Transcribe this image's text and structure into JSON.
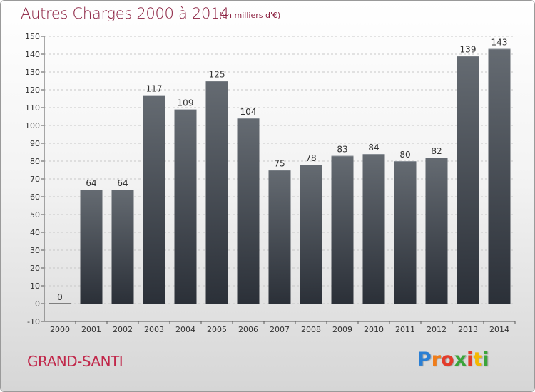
{
  "header": {
    "title": "Autres Charges 2000 à 2014",
    "subtitle": "(en milliers d'€)"
  },
  "footer": {
    "commune": "GRAND-SANTI",
    "logo_letters": [
      "P",
      "r",
      "o",
      "x",
      "i",
      "t",
      "i"
    ],
    "logo_colors": [
      "#2a7fd4",
      "#f07d1a",
      "#e43c2b",
      "#3aa53a",
      "#e43c2b",
      "#f5b800",
      "#3aa53a"
    ]
  },
  "colors": {
    "bar_top": "#656b72",
    "bar_bottom": "#2b3038",
    "grid": "#c8c8c8",
    "title": "#8a1e3e",
    "commune": "#c1274a"
  },
  "chart_data": {
    "type": "bar",
    "title": "Autres Charges 2000 à 2014",
    "subtitle": "(en milliers d'€)",
    "categories": [
      "2000",
      "2001",
      "2002",
      "2003",
      "2004",
      "2005",
      "2006",
      "2007",
      "2008",
      "2009",
      "2010",
      "2011",
      "2012",
      "2013",
      "2014"
    ],
    "values": [
      0,
      64,
      64,
      117,
      109,
      125,
      104,
      75,
      78,
      83,
      84,
      80,
      82,
      139,
      143
    ],
    "ylim": [
      -10,
      150
    ],
    "yticks": [
      -10,
      0,
      10,
      20,
      30,
      40,
      50,
      60,
      70,
      80,
      90,
      100,
      110,
      120,
      130,
      140,
      150
    ],
    "grid": true
  }
}
